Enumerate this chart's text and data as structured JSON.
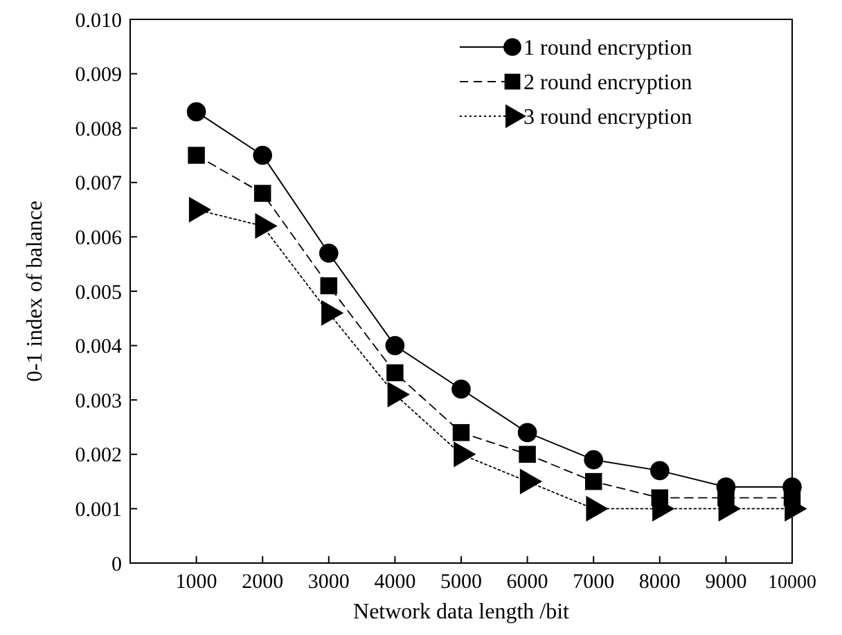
{
  "chart_data": {
    "type": "line",
    "xlabel": "Network data length /bit",
    "ylabel": "0-1 index of balance",
    "x": [
      1000,
      2000,
      3000,
      4000,
      5000,
      6000,
      7000,
      8000,
      9000,
      10000
    ],
    "xlim": [
      0,
      10000
    ],
    "xticks": [
      1000,
      2000,
      3000,
      4000,
      5000,
      6000,
      7000,
      8000,
      9000,
      10000
    ],
    "ylim": [
      0,
      0.01
    ],
    "yticks": [
      {
        "value": 0,
        "label": "0"
      },
      {
        "value": 0.001,
        "label": "0.001"
      },
      {
        "value": 0.002,
        "label": "0.002"
      },
      {
        "value": 0.003,
        "label": "0.003"
      },
      {
        "value": 0.004,
        "label": "0.004"
      },
      {
        "value": 0.005,
        "label": "0.005"
      },
      {
        "value": 0.006,
        "label": "0.006"
      },
      {
        "value": 0.007,
        "label": "0.007"
      },
      {
        "value": 0.008,
        "label": "0.008"
      },
      {
        "value": 0.009,
        "label": "0.009"
      },
      {
        "value": 0.01,
        "label": "0.010"
      }
    ],
    "grid": false,
    "legend": "top right",
    "series": [
      {
        "name": "1 round encryption",
        "color": "#000000",
        "marker": "circle",
        "line_style": "solid",
        "values": [
          0.0083,
          0.0075,
          0.0057,
          0.004,
          0.0032,
          0.0024,
          0.0019,
          0.0017,
          0.0014,
          0.0014
        ]
      },
      {
        "name": "2 round encryption",
        "color": "#000000",
        "marker": "square",
        "line_style": "dashed",
        "values": [
          0.0075,
          0.0068,
          0.0051,
          0.0035,
          0.0024,
          0.002,
          0.0015,
          0.0012,
          0.0012,
          0.0012
        ]
      },
      {
        "name": "3 round encryption",
        "color": "#000000",
        "marker": "triangle",
        "line_style": "dotted",
        "values": [
          0.0065,
          0.0062,
          0.0046,
          0.0031,
          0.002,
          0.0015,
          0.001,
          0.001,
          0.001,
          0.001
        ]
      }
    ]
  }
}
